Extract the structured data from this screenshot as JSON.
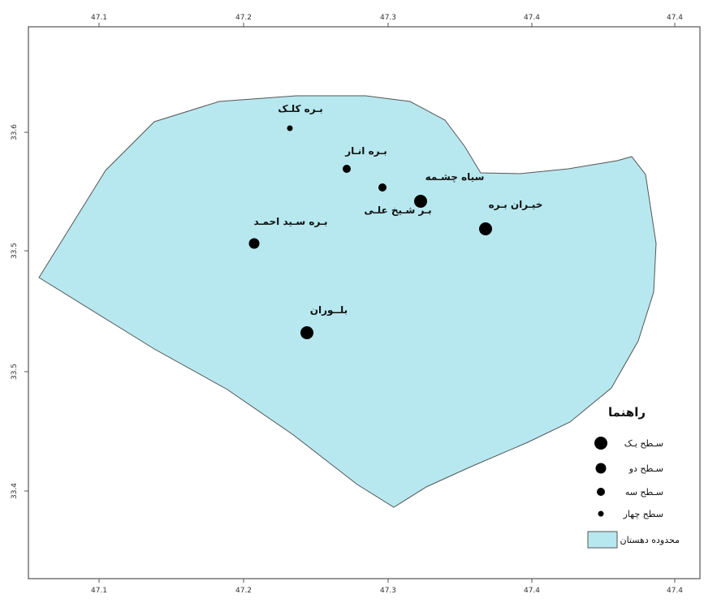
{
  "colors": {
    "region_fill": "#b7e8ef",
    "outline": "#555555",
    "dot": "#000000"
  },
  "axes": {
    "top_ticks": [
      "47.1",
      "47.2",
      "47.3",
      "47.4",
      "47.4"
    ],
    "bottom_ticks": [
      "47.1",
      "47.2",
      "47.3",
      "47.4",
      "47.4"
    ],
    "left_ticks": [
      "33.6",
      "33.5",
      "33.5",
      "33.4"
    ]
  },
  "places": [
    {
      "name": "بـره كلـک",
      "level": 4
    },
    {
      "name": "بـره انـار",
      "level": 3
    },
    {
      "name": "سياه چشـمه",
      "level": 3
    },
    {
      "name": "بـر شـيخ علـی",
      "level": 2
    },
    {
      "name": "خيـران بـره",
      "level": 2
    },
    {
      "name": "بـره سـيد احمـد",
      "level": 2
    },
    {
      "name": "بلــوران",
      "level": 1
    }
  ],
  "legend": {
    "title": "راهنما",
    "items": [
      {
        "label": "سـطح يـک",
        "icon": "dot-large-icon"
      },
      {
        "label": "سـطح دو",
        "icon": "dot-medium-icon"
      },
      {
        "label": "سـطح سه",
        "icon": "dot-small-icon"
      },
      {
        "label": "سطح چهار",
        "icon": "dot-tiny-icon"
      },
      {
        "label": "محدوده دهستان",
        "icon": "area-swatch-icon"
      }
    ]
  }
}
